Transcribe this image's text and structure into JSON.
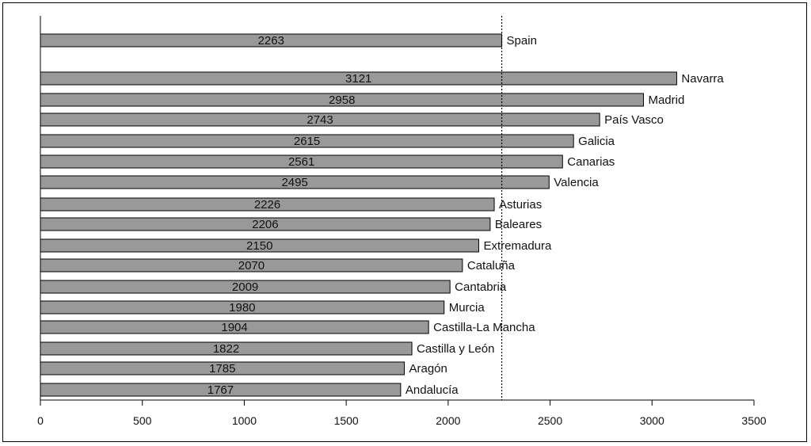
{
  "chart_data": {
    "type": "bar",
    "orientation": "horizontal",
    "reference": {
      "name": "Spain",
      "value": 2263
    },
    "categories": [
      "Navarra",
      "Madrid",
      "País Vasco",
      "Galicia",
      "Canarias",
      "Valencia",
      "Asturias",
      "Baleares",
      "Extremadura",
      "Cataluña",
      "Cantabria",
      "Murcia",
      "Castilla-La Mancha",
      "Castilla y León",
      "Aragón",
      "Andalucía"
    ],
    "values": [
      3121,
      2958,
      2743,
      2615,
      2561,
      2495,
      2226,
      2206,
      2150,
      2070,
      2009,
      1980,
      1904,
      1822,
      1785,
      1767
    ],
    "reference_line": 2263,
    "xlim": [
      0,
      3500
    ],
    "xticks": [
      0,
      500,
      1000,
      1500,
      2000,
      2500,
      3000,
      3500
    ],
    "title": "",
    "xlabel": "",
    "ylabel": "",
    "colors": {
      "bar": "#999999",
      "edge": "#000000"
    }
  }
}
